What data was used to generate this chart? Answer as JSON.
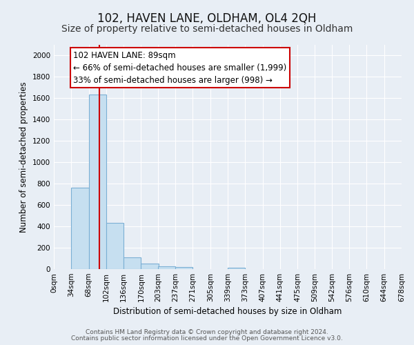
{
  "title": "102, HAVEN LANE, OLDHAM, OL4 2QH",
  "subtitle": "Size of property relative to semi-detached houses in Oldham",
  "xlabel": "Distribution of semi-detached houses by size in Oldham",
  "ylabel": "Number of semi-detached properties",
  "bin_edges": [
    0,
    34,
    68,
    102,
    136,
    170,
    203,
    237,
    271,
    305,
    339,
    373,
    407,
    441,
    475,
    509,
    542,
    576,
    610,
    644,
    678
  ],
  "bin_labels": [
    "0sqm",
    "34sqm",
    "68sqm",
    "102sqm",
    "136sqm",
    "170sqm",
    "203sqm",
    "237sqm",
    "271sqm",
    "305sqm",
    "339sqm",
    "373sqm",
    "407sqm",
    "441sqm",
    "475sqm",
    "509sqm",
    "542sqm",
    "576sqm",
    "610sqm",
    "644sqm",
    "678sqm"
  ],
  "bar_heights": [
    0,
    760,
    1635,
    435,
    110,
    50,
    25,
    20,
    0,
    0,
    15,
    0,
    0,
    0,
    0,
    0,
    0,
    0,
    0,
    0
  ],
  "bar_color": "#c6dff0",
  "bar_edge_color": "#7bafd4",
  "property_size": 89,
  "vline_color": "#cc0000",
  "annotation_title": "102 HAVEN LANE: 89sqm",
  "annotation_line1": "← 66% of semi-detached houses are smaller (1,999)",
  "annotation_line2": "33% of semi-detached houses are larger (998) →",
  "annotation_box_color": "#ffffff",
  "annotation_box_edge": "#cc0000",
  "ylim": [
    0,
    2100
  ],
  "yticks": [
    0,
    200,
    400,
    600,
    800,
    1000,
    1200,
    1400,
    1600,
    1800,
    2000
  ],
  "footer_line1": "Contains HM Land Registry data © Crown copyright and database right 2024.",
  "footer_line2": "Contains public sector information licensed under the Open Government Licence v3.0.",
  "background_color": "#e8eef5",
  "plot_background": "#e8eef5",
  "title_fontsize": 12,
  "subtitle_fontsize": 10,
  "axis_label_fontsize": 8.5,
  "tick_fontsize": 7.5,
  "annotation_fontsize": 8.5,
  "footer_fontsize": 6.5
}
